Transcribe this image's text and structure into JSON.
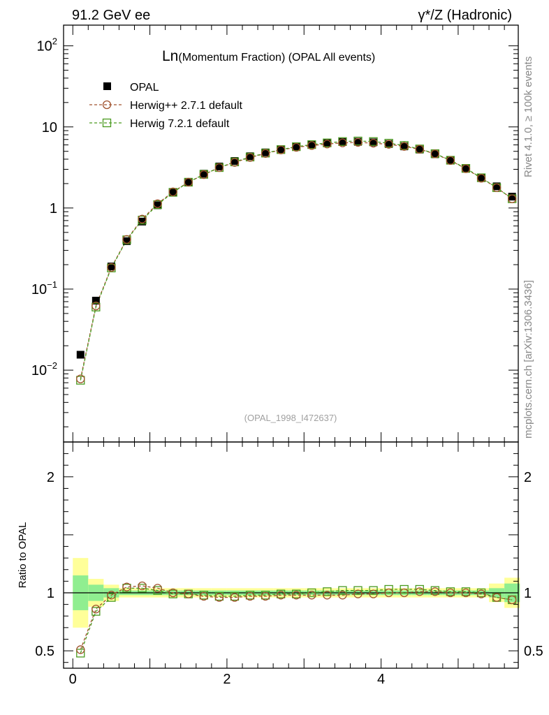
{
  "header": {
    "left": "91.2 GeV ee",
    "right": "γ*/Z (Hadronic)"
  },
  "side_labels": {
    "rivet": "Rivet 4.1.0, ≥ 100k events",
    "mcplots": "mcplots.cern.ch [arXiv:1306.3436]"
  },
  "colors": {
    "data": "#000000",
    "herwigpp": "#a0522d",
    "herwig7": "#4a9a1f",
    "band_inner": "#90ee90",
    "band_outer": "#ffff99"
  },
  "chart_data": [
    {
      "type": "scatter",
      "title_main": "Ln",
      "title_rest": "(Momentum Fraction) (OPAL All events)",
      "watermark": "(OPAL_1998_I472637)",
      "yscale": "log",
      "xlim": [
        -0.12,
        5.78
      ],
      "ylim": [
        0.0013,
        180
      ],
      "legend_placement": "top-left",
      "yticks": [
        {
          "value": 100,
          "base": "10",
          "exp": "2"
        },
        {
          "value": 10,
          "base": "10",
          "exp": ""
        },
        {
          "value": 1,
          "base": "1",
          "exp": ""
        },
        {
          "value": 0.1,
          "base": "10",
          "exp": "−1"
        },
        {
          "value": 0.01,
          "base": "10",
          "exp": "−2"
        }
      ],
      "x": [
        0.1,
        0.3,
        0.5,
        0.7,
        0.9,
        1.1,
        1.3,
        1.5,
        1.7,
        1.9,
        2.1,
        2.3,
        2.5,
        2.7,
        2.9,
        3.1,
        3.3,
        3.5,
        3.7,
        3.9,
        4.1,
        4.3,
        4.5,
        4.7,
        4.9,
        5.1,
        5.3,
        5.5,
        5.7
      ],
      "series": [
        {
          "name": "OPAL",
          "marker": "filled-square",
          "values": [
            0.0155,
            0.072,
            0.19,
            0.39,
            0.68,
            1.08,
            1.57,
            2.1,
            2.65,
            3.25,
            3.8,
            4.35,
            4.85,
            5.3,
            5.75,
            6.05,
            6.3,
            6.5,
            6.55,
            6.45,
            6.15,
            5.75,
            5.25,
            4.6,
            3.85,
            3.05,
            2.35,
            1.85,
            1.38
          ]
        },
        {
          "name": "Herwig++ 2.7.1 default",
          "marker": "open-circle",
          "values": [
            0.0078,
            0.062,
            0.185,
            0.41,
            0.73,
            1.13,
            1.58,
            2.08,
            2.58,
            3.15,
            3.65,
            4.2,
            4.7,
            5.2,
            5.6,
            5.9,
            6.15,
            6.35,
            6.45,
            6.3,
            6.1,
            5.75,
            5.3,
            4.65,
            3.85,
            3.05,
            2.33,
            1.78,
            1.3
          ]
        },
        {
          "name": "Herwig 7.2.1 default",
          "marker": "open-square",
          "values": [
            0.0075,
            0.06,
            0.182,
            0.405,
            0.71,
            1.1,
            1.56,
            2.08,
            2.6,
            3.15,
            3.7,
            4.25,
            4.75,
            5.25,
            5.7,
            6.05,
            6.35,
            6.6,
            6.7,
            6.6,
            6.3,
            5.9,
            5.35,
            4.68,
            3.88,
            3.08,
            2.36,
            1.78,
            1.3
          ]
        }
      ]
    },
    {
      "type": "scatter",
      "ylabel": "Ratio to OPAL",
      "xlim": [
        -0.12,
        5.78
      ],
      "ylim": [
        0.35,
        2.3
      ],
      "yticks": [
        {
          "value": 2,
          "label": "2"
        },
        {
          "value": 1,
          "label": "1"
        },
        {
          "value": 0.5,
          "label": "0.5"
        }
      ],
      "xticks": [
        {
          "value": 0,
          "label": "0"
        },
        {
          "value": 2,
          "label": "2"
        },
        {
          "value": 4,
          "label": "4"
        }
      ],
      "x": [
        0.1,
        0.3,
        0.5,
        0.7,
        0.9,
        1.1,
        1.3,
        1.5,
        1.7,
        1.9,
        2.1,
        2.3,
        2.5,
        2.7,
        2.9,
        3.1,
        3.3,
        3.5,
        3.7,
        3.9,
        4.1,
        4.3,
        4.5,
        4.7,
        4.9,
        5.1,
        5.3,
        5.5,
        5.7
      ],
      "band_inner": [
        0.15,
        0.07,
        0.04,
        0.02,
        0.02,
        0.02,
        0.02,
        0.02,
        0.02,
        0.02,
        0.02,
        0.02,
        0.02,
        0.02,
        0.02,
        0.02,
        0.02,
        0.02,
        0.02,
        0.02,
        0.02,
        0.02,
        0.02,
        0.02,
        0.02,
        0.02,
        0.02,
        0.04,
        0.08
      ],
      "band_outer": [
        0.3,
        0.12,
        0.07,
        0.04,
        0.04,
        0.04,
        0.04,
        0.04,
        0.04,
        0.04,
        0.04,
        0.04,
        0.04,
        0.04,
        0.04,
        0.04,
        0.04,
        0.04,
        0.04,
        0.04,
        0.04,
        0.04,
        0.04,
        0.04,
        0.04,
        0.04,
        0.04,
        0.08,
        0.13
      ],
      "series": [
        {
          "name": "Herwig++ 2.7.1 default",
          "marker": "open-circle",
          "values": [
            0.51,
            0.86,
            0.98,
            1.05,
            1.06,
            1.04,
            1.0,
            0.99,
            0.97,
            0.96,
            0.96,
            0.97,
            0.97,
            0.98,
            0.98,
            0.98,
            0.98,
            0.98,
            0.99,
            0.99,
            1.0,
            1.0,
            1.01,
            1.01,
            1.0,
            1.0,
            0.99,
            0.96,
            0.94
          ]
        },
        {
          "name": "Herwig 7.2.1 default",
          "marker": "open-square",
          "values": [
            0.48,
            0.84,
            0.96,
            1.04,
            1.04,
            1.02,
            0.99,
            0.99,
            0.98,
            0.97,
            0.97,
            0.98,
            0.98,
            0.99,
            0.99,
            1.0,
            1.01,
            1.02,
            1.02,
            1.02,
            1.03,
            1.03,
            1.03,
            1.02,
            1.01,
            1.01,
            1.0,
            0.96,
            0.94
          ]
        }
      ]
    }
  ]
}
